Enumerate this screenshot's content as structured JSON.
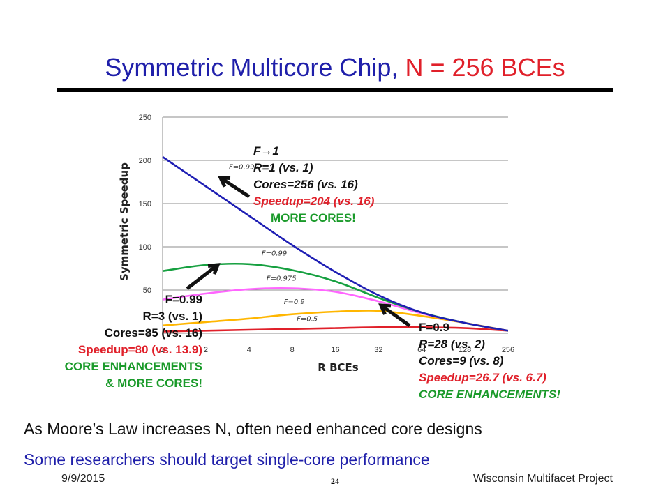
{
  "slide": {
    "title_main": "Symmetric Multicore Chip,",
    "title_n": "N = 256 BCEs",
    "bullets": [
      "As Moore’s Law increases N, often need enhanced core designs",
      "Some researchers should target single-core performance"
    ],
    "footer_date": "9/9/2015",
    "footer_page": "24",
    "footer_org": "Wisconsin Multifacet Project"
  },
  "chart_data": {
    "type": "line",
    "xlabel": "R BCEs",
    "ylabel": "Symmetric Speedup",
    "x_ticks": [
      1,
      2,
      4,
      8,
      16,
      32,
      64,
      128,
      256
    ],
    "x_tick_labels": [
      "1",
      "2",
      "4",
      "8",
      "16",
      "32",
      "64",
      "128",
      "256"
    ],
    "x_scale": "log2",
    "ylim": [
      0,
      250
    ],
    "y_ticks": [
      0,
      50,
      100,
      150,
      200,
      250
    ],
    "y_tick_labels": [
      "0",
      "50",
      "100",
      "150",
      "200",
      "250"
    ],
    "grid": "horizontal",
    "series": [
      {
        "name": "F=0.999",
        "color": "#1e1eb4",
        "x": [
          1,
          2,
          4,
          8,
          16,
          32,
          64,
          128,
          256
        ],
        "y": [
          204,
          170,
          136,
          102,
          71,
          44,
          24,
          12,
          3
        ]
      },
      {
        "name": "F=0.99",
        "color": "#16a040",
        "x": [
          1,
          2,
          4,
          8,
          16,
          32,
          64,
          128,
          256
        ],
        "y": [
          72,
          79,
          80,
          73,
          60,
          41,
          24,
          12,
          3
        ]
      },
      {
        "name": "F=0.975",
        "color": "#ff66ff",
        "x": [
          1,
          2,
          4,
          8,
          16,
          32,
          64,
          128,
          256
        ],
        "y": [
          39,
          46,
          51,
          52,
          48,
          37,
          23,
          12,
          3
        ]
      },
      {
        "name": "F=0.9",
        "color": "#ffb600",
        "x": [
          1,
          2,
          4,
          8,
          16,
          32,
          64,
          128,
          256
        ],
        "y": [
          9,
          13,
          17,
          22,
          25,
          26,
          20,
          12,
          3
        ]
      },
      {
        "name": "F=0.5",
        "color": "#e0202a",
        "x": [
          1,
          2,
          4,
          8,
          16,
          32,
          64,
          128,
          256
        ],
        "y": [
          2,
          3,
          4,
          5,
          6,
          7,
          7,
          6,
          3
        ]
      }
    ],
    "curve_labels": [
      {
        "text": "F=0.999",
        "x": 2.9,
        "y": 190
      },
      {
        "text": "F=0.99",
        "x": 4.9,
        "y": 90
      },
      {
        "text": "F=0.975",
        "x": 5.3,
        "y": 61
      },
      {
        "text": "F=0.9",
        "x": 7.0,
        "y": 34
      },
      {
        "text": "F=0.5",
        "x": 8.6,
        "y": 14
      }
    ],
    "annotations": {
      "top": [
        "F→1",
        "R=1 (vs. 1)",
        "Cores=256 (vs. 16)",
        "Speedup=204 (vs. 16)",
        "MORE CORES!"
      ],
      "left": [
        "F=0.99",
        "R=3 (vs. 1)",
        "Cores=85 (vs. 16)",
        "Speedup=80 (vs. 13.9)",
        "CORE ENHANCEMENTS",
        "& MORE CORES!"
      ],
      "right": [
        "F=0.9",
        "R=28 (vs. 2)",
        "Cores=9 (vs. 8)",
        "Speedup=26.7 (vs. 6.7)",
        "CORE ENHANCEMENTS!"
      ]
    }
  }
}
